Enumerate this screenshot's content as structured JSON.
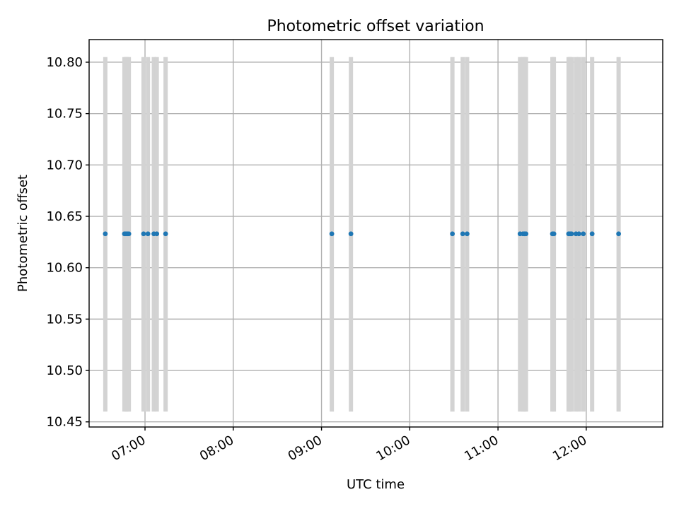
{
  "chart_data": {
    "type": "scatter",
    "title": "Photometric offset variation",
    "xlabel": "UTC time",
    "ylabel": "Photometric offset",
    "xlim": [
      "06:22",
      "12:52"
    ],
    "ylim": [
      10.445,
      10.822
    ],
    "x_ticks": [
      "07:00",
      "08:00",
      "09:00",
      "10:00",
      "11:00",
      "12:00"
    ],
    "y_ticks": [
      "10.45",
      "10.50",
      "10.55",
      "10.60",
      "10.65",
      "10.70",
      "10.75",
      "10.80"
    ],
    "grid": true,
    "marker_color": "#1f77b4",
    "band_color": "#d3d3d3",
    "band_range": [
      10.46,
      10.805
    ],
    "points": [
      {
        "x": "06:33",
        "y": 10.633
      },
      {
        "x": "06:46",
        "y": 10.633
      },
      {
        "x": "06:47",
        "y": 10.633
      },
      {
        "x": "06:48",
        "y": 10.633
      },
      {
        "x": "06:49",
        "y": 10.633
      },
      {
        "x": "06:59",
        "y": 10.633
      },
      {
        "x": "07:02",
        "y": 10.633
      },
      {
        "x": "07:06",
        "y": 10.633
      },
      {
        "x": "07:08",
        "y": 10.633
      },
      {
        "x": "07:14",
        "y": 10.633
      },
      {
        "x": "09:07",
        "y": 10.633
      },
      {
        "x": "09:20",
        "y": 10.633
      },
      {
        "x": "10:29",
        "y": 10.633
      },
      {
        "x": "10:36",
        "y": 10.633
      },
      {
        "x": "10:39",
        "y": 10.633
      },
      {
        "x": "11:15",
        "y": 10.633
      },
      {
        "x": "11:17",
        "y": 10.633
      },
      {
        "x": "11:18",
        "y": 10.633
      },
      {
        "x": "11:19",
        "y": 10.633
      },
      {
        "x": "11:37",
        "y": 10.633
      },
      {
        "x": "11:38",
        "y": 10.633
      },
      {
        "x": "11:48",
        "y": 10.633
      },
      {
        "x": "11:49",
        "y": 10.633
      },
      {
        "x": "11:50",
        "y": 10.633
      },
      {
        "x": "11:53",
        "y": 10.633
      },
      {
        "x": "11:55",
        "y": 10.633
      },
      {
        "x": "11:58",
        "y": 10.633
      },
      {
        "x": "12:04",
        "y": 10.633
      },
      {
        "x": "12:22",
        "y": 10.633
      }
    ]
  }
}
